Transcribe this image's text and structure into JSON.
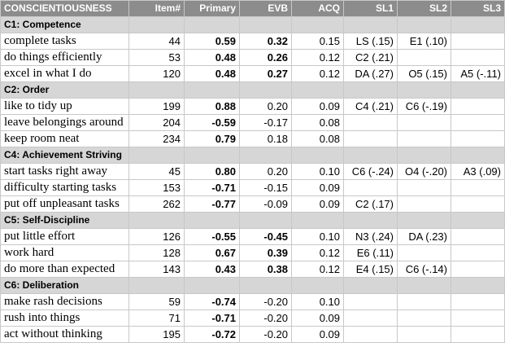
{
  "header": [
    "CONSCIENTIOUSNESS",
    "Item#",
    "Primary",
    "EVB",
    "ACQ",
    "SL1",
    "SL2",
    "SL3"
  ],
  "sections": [
    {
      "title": "C1: Competence",
      "rows": [
        {
          "label": "complete tasks",
          "item": "44",
          "primary": "0.59",
          "primary_bold": true,
          "evb": "0.32",
          "evb_bold": true,
          "acq": "0.15",
          "sl1": "LS (.15)",
          "sl2": "E1 (.10)",
          "sl3": ""
        },
        {
          "label": "do things efficiently",
          "item": "53",
          "primary": "0.48",
          "primary_bold": true,
          "evb": "0.26",
          "evb_bold": true,
          "acq": "0.12",
          "sl1": "C2 (.21)",
          "sl2": "",
          "sl3": ""
        },
        {
          "label": "excel in what I do",
          "item": "120",
          "primary": "0.48",
          "primary_bold": true,
          "evb": "0.27",
          "evb_bold": true,
          "acq": "0.12",
          "sl1": "DA (.27)",
          "sl2": "O5 (.15)",
          "sl3": "A5 (-.11)"
        }
      ]
    },
    {
      "title": "C2: Order",
      "rows": [
        {
          "label": "like to tidy up",
          "item": "199",
          "primary": "0.88",
          "primary_bold": true,
          "evb": "0.20",
          "evb_bold": false,
          "acq": "0.09",
          "sl1": "C4 (.21)",
          "sl2": "C6 (-.19)",
          "sl3": ""
        },
        {
          "label": "leave belongings around",
          "item": "204",
          "primary": "-0.59",
          "primary_bold": true,
          "evb": "-0.17",
          "evb_bold": false,
          "acq": "0.08",
          "sl1": "",
          "sl2": "",
          "sl3": ""
        },
        {
          "label": "keep room neat",
          "item": "234",
          "primary": "0.79",
          "primary_bold": true,
          "evb": "0.18",
          "evb_bold": false,
          "acq": "0.08",
          "sl1": "",
          "sl2": "",
          "sl3": ""
        }
      ]
    },
    {
      "title": "C4: Achievement Striving",
      "rows": [
        {
          "label": "start tasks right away",
          "item": "45",
          "primary": "0.80",
          "primary_bold": true,
          "evb": "0.20",
          "evb_bold": false,
          "acq": "0.10",
          "sl1": "C6 (-.24)",
          "sl2": "O4 (-.20)",
          "sl3": "A3 (.09)"
        },
        {
          "label": "difficulty starting tasks",
          "item": "153",
          "primary": "-0.71",
          "primary_bold": true,
          "evb": "-0.15",
          "evb_bold": false,
          "acq": "0.09",
          "sl1": "",
          "sl2": "",
          "sl3": ""
        },
        {
          "label": "put off unpleasant tasks",
          "item": "262",
          "primary": "-0.77",
          "primary_bold": true,
          "evb": "-0.09",
          "evb_bold": false,
          "acq": "0.09",
          "sl1": "C2 (.17)",
          "sl2": "",
          "sl3": ""
        }
      ]
    },
    {
      "title": "C5: Self-Discipline",
      "rows": [
        {
          "label": "put little effort",
          "item": "126",
          "primary": "-0.55",
          "primary_bold": true,
          "evb": "-0.45",
          "evb_bold": true,
          "acq": "0.10",
          "sl1": "N3 (.24)",
          "sl2": "DA (.23)",
          "sl3": ""
        },
        {
          "label": "work hard",
          "item": "128",
          "primary": "0.67",
          "primary_bold": true,
          "evb": "0.39",
          "evb_bold": true,
          "acq": "0.12",
          "sl1": "E6 (.11)",
          "sl2": "",
          "sl3": ""
        },
        {
          "label": "do more than expected",
          "item": "143",
          "primary": "0.43",
          "primary_bold": true,
          "evb": "0.38",
          "evb_bold": true,
          "acq": "0.12",
          "sl1": "E4 (.15)",
          "sl2": "C6 (-.14)",
          "sl3": ""
        }
      ]
    },
    {
      "title": "C6: Deliberation",
      "rows": [
        {
          "label": "make rash decisions",
          "item": "59",
          "primary": "-0.74",
          "primary_bold": true,
          "evb": "-0.20",
          "evb_bold": false,
          "acq": "0.10",
          "sl1": "",
          "sl2": "",
          "sl3": ""
        },
        {
          "label": "rush into things",
          "item": "71",
          "primary": "-0.71",
          "primary_bold": true,
          "evb": "-0.20",
          "evb_bold": false,
          "acq": "0.09",
          "sl1": "",
          "sl2": "",
          "sl3": ""
        },
        {
          "label": "act without thinking",
          "item": "195",
          "primary": "-0.72",
          "primary_bold": true,
          "evb": "-0.20",
          "evb_bold": false,
          "acq": "0.09",
          "sl1": "",
          "sl2": "",
          "sl3": ""
        }
      ]
    }
  ]
}
